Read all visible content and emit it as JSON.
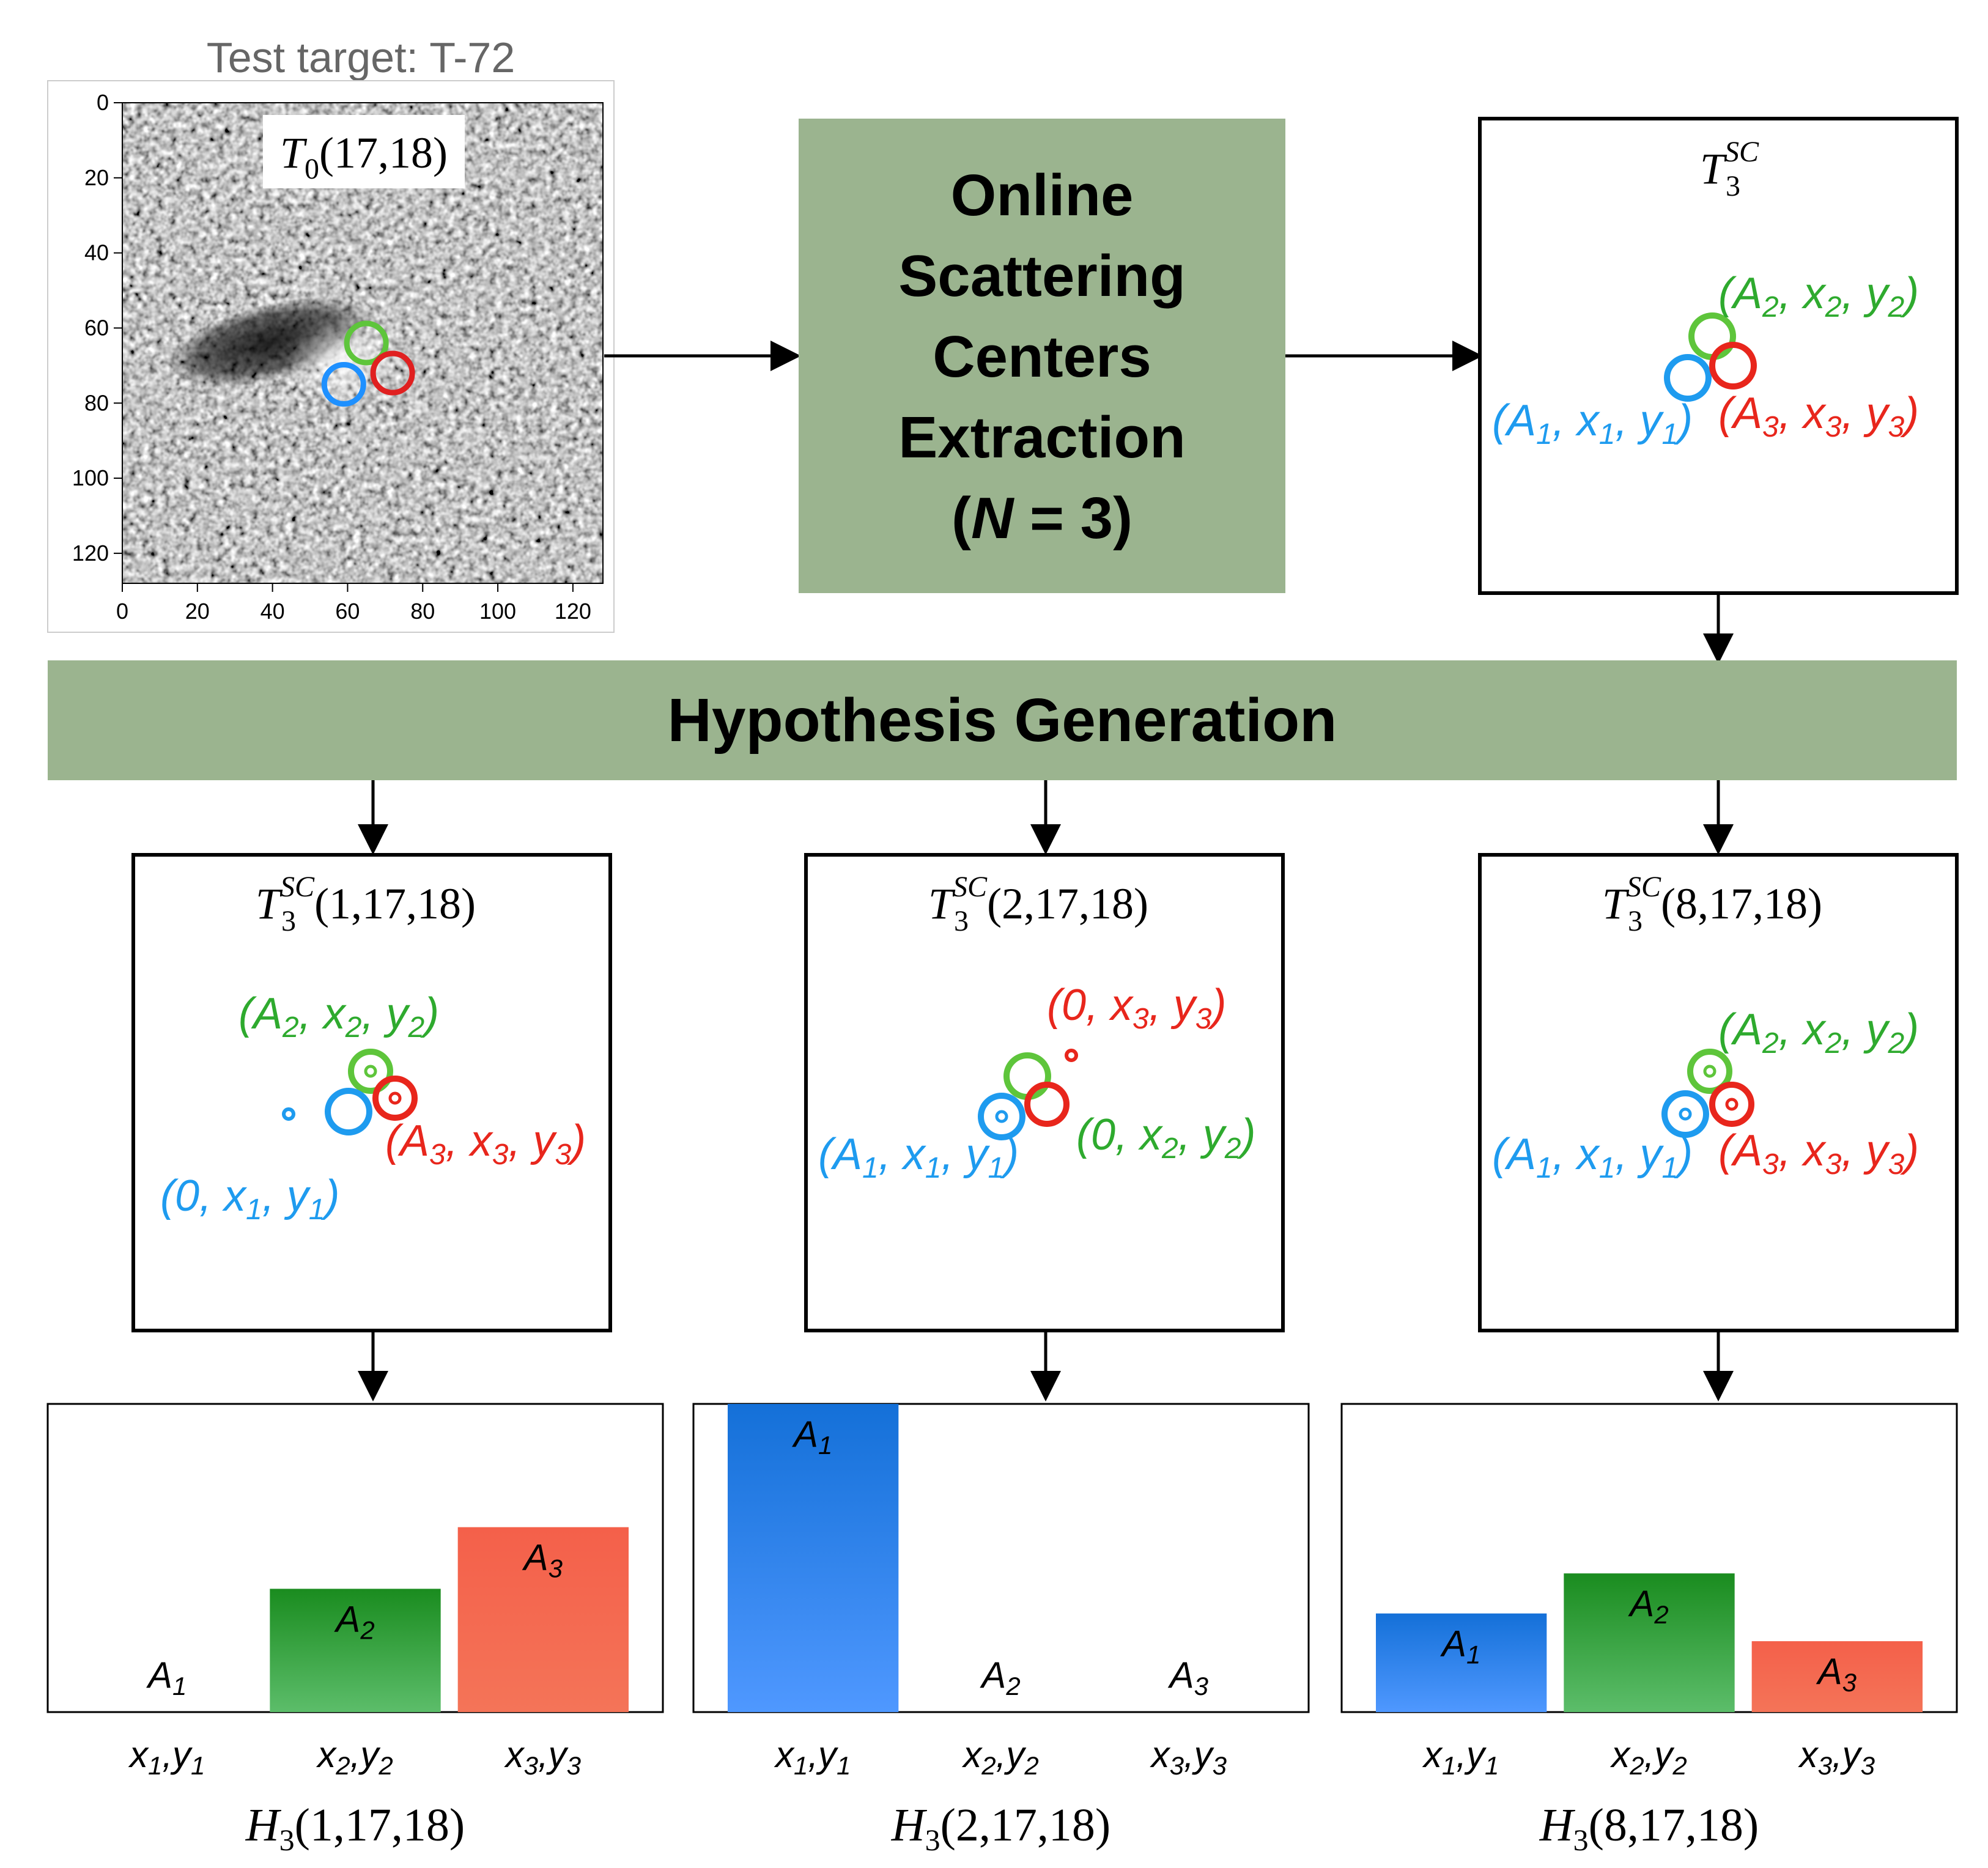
{
  "test_label": "Test target: T-72",
  "sar_image": {
    "target_text": "T",
    "target_sub": "0",
    "target_args": "(17,18)",
    "x_ticks": [
      "0",
      "20",
      "40",
      "60",
      "80",
      "100",
      "120"
    ],
    "y_ticks": [
      "0",
      "20",
      "40",
      "60",
      "80",
      "100",
      "120"
    ],
    "detections": [
      {
        "name": "green-detection-circle",
        "color": "#5ec53b",
        "x": 65,
        "y": 64
      },
      {
        "name": "blue-detection-circle",
        "color": "#1e90ff",
        "x": 59,
        "y": 75
      },
      {
        "name": "red-detection-circle",
        "color": "#e02020",
        "x": 72,
        "y": 72
      }
    ]
  },
  "colors": {
    "green_box": "#9bb48f",
    "blue": "#1e9bef",
    "green": "#2eaa2e",
    "red": "#e8261c",
    "bar_blue_top": "#1470d8",
    "bar_blue_bottom": "#4f98ff",
    "bar_green_top": "#1a8c1f",
    "bar_green_bottom": "#5cbd6a",
    "bar_red": "#f36a50"
  },
  "extraction_box": {
    "lines": [
      "Online",
      "Scattering",
      "Centers",
      "Extraction"
    ],
    "n_prefix": "(",
    "n_var": "N",
    "n_suffix": " = 3)"
  },
  "tsc_box": {
    "title_main": "T",
    "title_sup": "SC",
    "title_sub": "3",
    "labels": [
      {
        "A": "A",
        "Asub": "2",
        "x": "x",
        "xsub": "2",
        "y": "y",
        "ysub": "2",
        "color": "green"
      },
      {
        "A": "A",
        "Asub": "1",
        "x": "x",
        "xsub": "1",
        "y": "y",
        "ysub": "1",
        "color": "blue"
      },
      {
        "A": "A",
        "Asub": "3",
        "x": "x",
        "xsub": "3",
        "y": "y",
        "ysub": "3",
        "color": "red"
      }
    ]
  },
  "hypothesis_bar": {
    "label": "Hypothesis Generation"
  },
  "hypotheses": [
    {
      "title_args": "(1,17,18)",
      "labels": [
        {
          "text": "(A",
          "sub": "2",
          "rest": ", x",
          "sub2": "2",
          "rest2": ", y",
          "sub3": "2",
          "end": ")",
          "color": "green"
        },
        {
          "text": "(A",
          "sub": "3",
          "rest": ", x",
          "sub2": "3",
          "rest2": ", y",
          "sub3": "3",
          "end": ")",
          "color": "red"
        },
        {
          "text": "(0, x",
          "sub": "1",
          "rest": ", y",
          "sub2": "1",
          "rest2": ")",
          "sub3": "",
          "end": "",
          "color": "blue"
        }
      ]
    },
    {
      "title_args": "(2,17,18)",
      "labels": [
        {
          "text": "(0, x",
          "sub": "3",
          "rest": ", y",
          "sub2": "3",
          "rest2": ")",
          "sub3": "",
          "end": "",
          "color": "red"
        },
        {
          "text": "(A",
          "sub": "1",
          "rest": ", x",
          "sub2": "1",
          "rest2": ", y",
          "sub3": "1",
          "end": ")",
          "color": "blue"
        },
        {
          "text": "(0, x",
          "sub": "2",
          "rest": ", y",
          "sub2": "2",
          "rest2": ")",
          "sub3": "",
          "end": "",
          "color": "green"
        }
      ]
    },
    {
      "title_args": "(8,17,18)",
      "labels": [
        {
          "text": "(A",
          "sub": "2",
          "rest": ", x",
          "sub2": "2",
          "rest2": ", y",
          "sub3": "2",
          "end": ")",
          "color": "green"
        },
        {
          "text": "(A",
          "sub": "1",
          "rest": ", x",
          "sub2": "1",
          "rest2": ", y",
          "sub3": "1",
          "end": ")",
          "color": "blue"
        },
        {
          "text": "(A",
          "sub": "3",
          "rest": ", x",
          "sub2": "3",
          "rest2": ", y",
          "sub3": "3",
          "end": ")",
          "color": "red"
        }
      ]
    }
  ],
  "chart_data": [
    {
      "type": "bar",
      "title": "H3(1,17,18)",
      "title_main": "H",
      "title_sub": "3",
      "title_args": "(1,17,18)",
      "categories": [
        "x1,y1",
        "x2,y2",
        "x3,y3"
      ],
      "category_parts": [
        [
          "x",
          "1",
          ",y",
          "1"
        ],
        [
          "x",
          "2",
          ",y",
          "2"
        ],
        [
          "x",
          "3",
          ",y",
          "3"
        ]
      ],
      "bar_labels": [
        [
          "A",
          "1"
        ],
        [
          "A",
          "2"
        ],
        [
          "A",
          "3"
        ]
      ],
      "values": [
        0,
        40,
        60
      ],
      "colors": [
        "blue",
        "green",
        "red"
      ],
      "ylim": [
        0,
        100
      ]
    },
    {
      "type": "bar",
      "title": "H3(2,17,18)",
      "title_main": "H",
      "title_sub": "3",
      "title_args": "(2,17,18)",
      "categories": [
        "x1,y1",
        "x2,y2",
        "x3,y3"
      ],
      "category_parts": [
        [
          "x",
          "1",
          ",y",
          "1"
        ],
        [
          "x",
          "2",
          ",y",
          "2"
        ],
        [
          "x",
          "3",
          ",y",
          "3"
        ]
      ],
      "bar_labels": [
        [
          "A",
          "1"
        ],
        [
          "A",
          "2"
        ],
        [
          "A",
          "3"
        ]
      ],
      "values": [
        100,
        0,
        0
      ],
      "colors": [
        "blue",
        "green",
        "red"
      ],
      "ylim": [
        0,
        100
      ]
    },
    {
      "type": "bar",
      "title": "H3(8,17,18)",
      "title_main": "H",
      "title_sub": "3",
      "title_args": "(8,17,18)",
      "categories": [
        "x1,y1",
        "x2,y2",
        "x3,y3"
      ],
      "category_parts": [
        [
          "x",
          "1",
          ",y",
          "1"
        ],
        [
          "x",
          "2",
          ",y",
          "2"
        ],
        [
          "x",
          "3",
          ",y",
          "3"
        ]
      ],
      "bar_labels": [
        [
          "A",
          "1"
        ],
        [
          "A",
          "2"
        ],
        [
          "A",
          "3"
        ]
      ],
      "values": [
        32,
        45,
        23
      ],
      "colors": [
        "blue",
        "green",
        "red"
      ],
      "ylim": [
        0,
        100
      ]
    }
  ]
}
